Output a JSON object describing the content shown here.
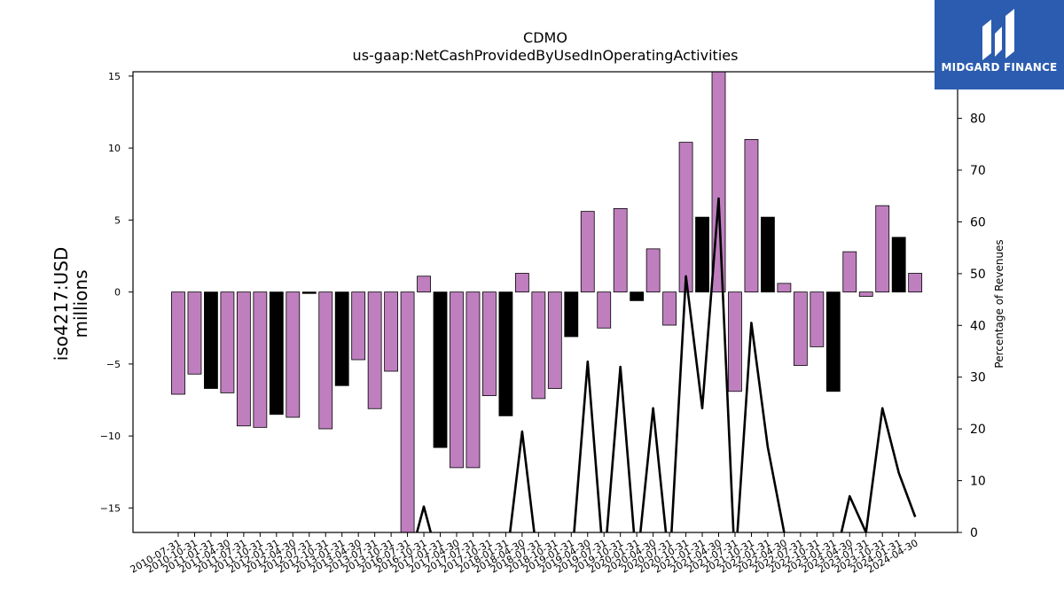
{
  "chart_data": {
    "type": "bar",
    "title": "CDMO",
    "subtitle": "us-gaap:NetCashProvidedByUsedInOperatingActivities",
    "ylabel": "iso4217:USD millions",
    "ylabel_lines": [
      "iso4217:USD",
      "millions"
    ],
    "y2label": "Percentage of Revenues",
    "ylim": [
      -16.7,
      15.3
    ],
    "y2lim": [
      0,
      89
    ],
    "yticks": [
      -15,
      -10,
      -5,
      0,
      5,
      10,
      15
    ],
    "y2ticks": [
      0,
      10,
      20,
      30,
      40,
      50,
      60,
      70,
      80
    ],
    "grid": false,
    "colors": {
      "default_bar": "#bf7fbf",
      "fiscal_year_end_bar": "#000000",
      "line": "#000000",
      "logo_bg": "#2b5caf"
    },
    "categories": [
      "2010-07-31",
      "2010-10-31",
      "2011-01-31",
      "2011-04-30",
      "2011-07-31",
      "2011-10-31",
      "2012-01-31",
      "2012-04-30",
      "2012-07-31",
      "2012-10-31",
      "2013-01-31",
      "2013-04-30",
      "2013-07-31",
      "2013-10-31",
      "2016-07-31",
      "2016-10-31",
      "2017-01-31",
      "2017-04-30",
      "2017-07-31",
      "2017-10-31",
      "2018-01-31",
      "2018-04-30",
      "2018-07-31",
      "2018-10-31",
      "2019-01-31",
      "2019-04-30",
      "2019-07-31",
      "2019-10-31",
      "2020-01-31",
      "2020-04-30",
      "2020-07-31",
      "2020-10-31",
      "2021-01-31",
      "2021-04-30",
      "2021-07-31",
      "2021-10-31",
      "2022-01-31",
      "2022-04-30",
      "2022-07-31",
      "2022-10-31",
      "2023-01-31",
      "2023-04-30",
      "2023-07-31",
      "2023-10-31",
      "2024-01-31",
      "2024-04-30"
    ],
    "series": [
      {
        "kind": "bar",
        "values": [
          -7.1,
          -5.7,
          -6.7,
          -7.0,
          -9.3,
          -9.4,
          -8.5,
          -8.7,
          -0.1,
          -9.5,
          -6.5,
          -4.7,
          -8.1,
          -5.5,
          -17.0,
          1.1,
          -10.8,
          -12.2,
          -12.2,
          -7.2,
          -8.6,
          1.3,
          -7.4,
          -6.7,
          -3.1,
          5.6,
          -2.5,
          5.8,
          -0.6,
          3.0,
          -2.3,
          10.4,
          5.2,
          15.5,
          -6.9,
          10.6,
          5.2,
          0.6,
          -5.1,
          -3.8,
          -6.9,
          2.8,
          -0.3,
          6.0,
          3.8,
          1.3
        ],
        "highlight": [
          false,
          false,
          true,
          false,
          false,
          false,
          true,
          false,
          true,
          false,
          true,
          false,
          false,
          false,
          false,
          false,
          true,
          false,
          false,
          false,
          true,
          false,
          false,
          false,
          true,
          false,
          false,
          false,
          true,
          false,
          false,
          false,
          true,
          false,
          false,
          false,
          true,
          false,
          false,
          false,
          true,
          false,
          false,
          false,
          true,
          false
        ]
      },
      {
        "kind": "line",
        "axis": "right",
        "values": [
          null,
          null,
          null,
          null,
          null,
          null,
          null,
          null,
          null,
          null,
          null,
          null,
          null,
          null,
          null,
          5.0,
          null,
          null,
          null,
          null,
          null,
          19.5,
          null,
          null,
          null,
          33.0,
          null,
          32.0,
          null,
          24.0,
          null,
          49.5,
          24.0,
          64.5,
          null,
          40.5,
          16.5,
          0,
          null,
          null,
          null,
          7.0,
          0,
          24.0,
          11.5,
          3.0
        ]
      }
    ]
  },
  "logo": {
    "text": "MIDGARD FINANCE",
    "icon": "midgard-logo-icon"
  }
}
